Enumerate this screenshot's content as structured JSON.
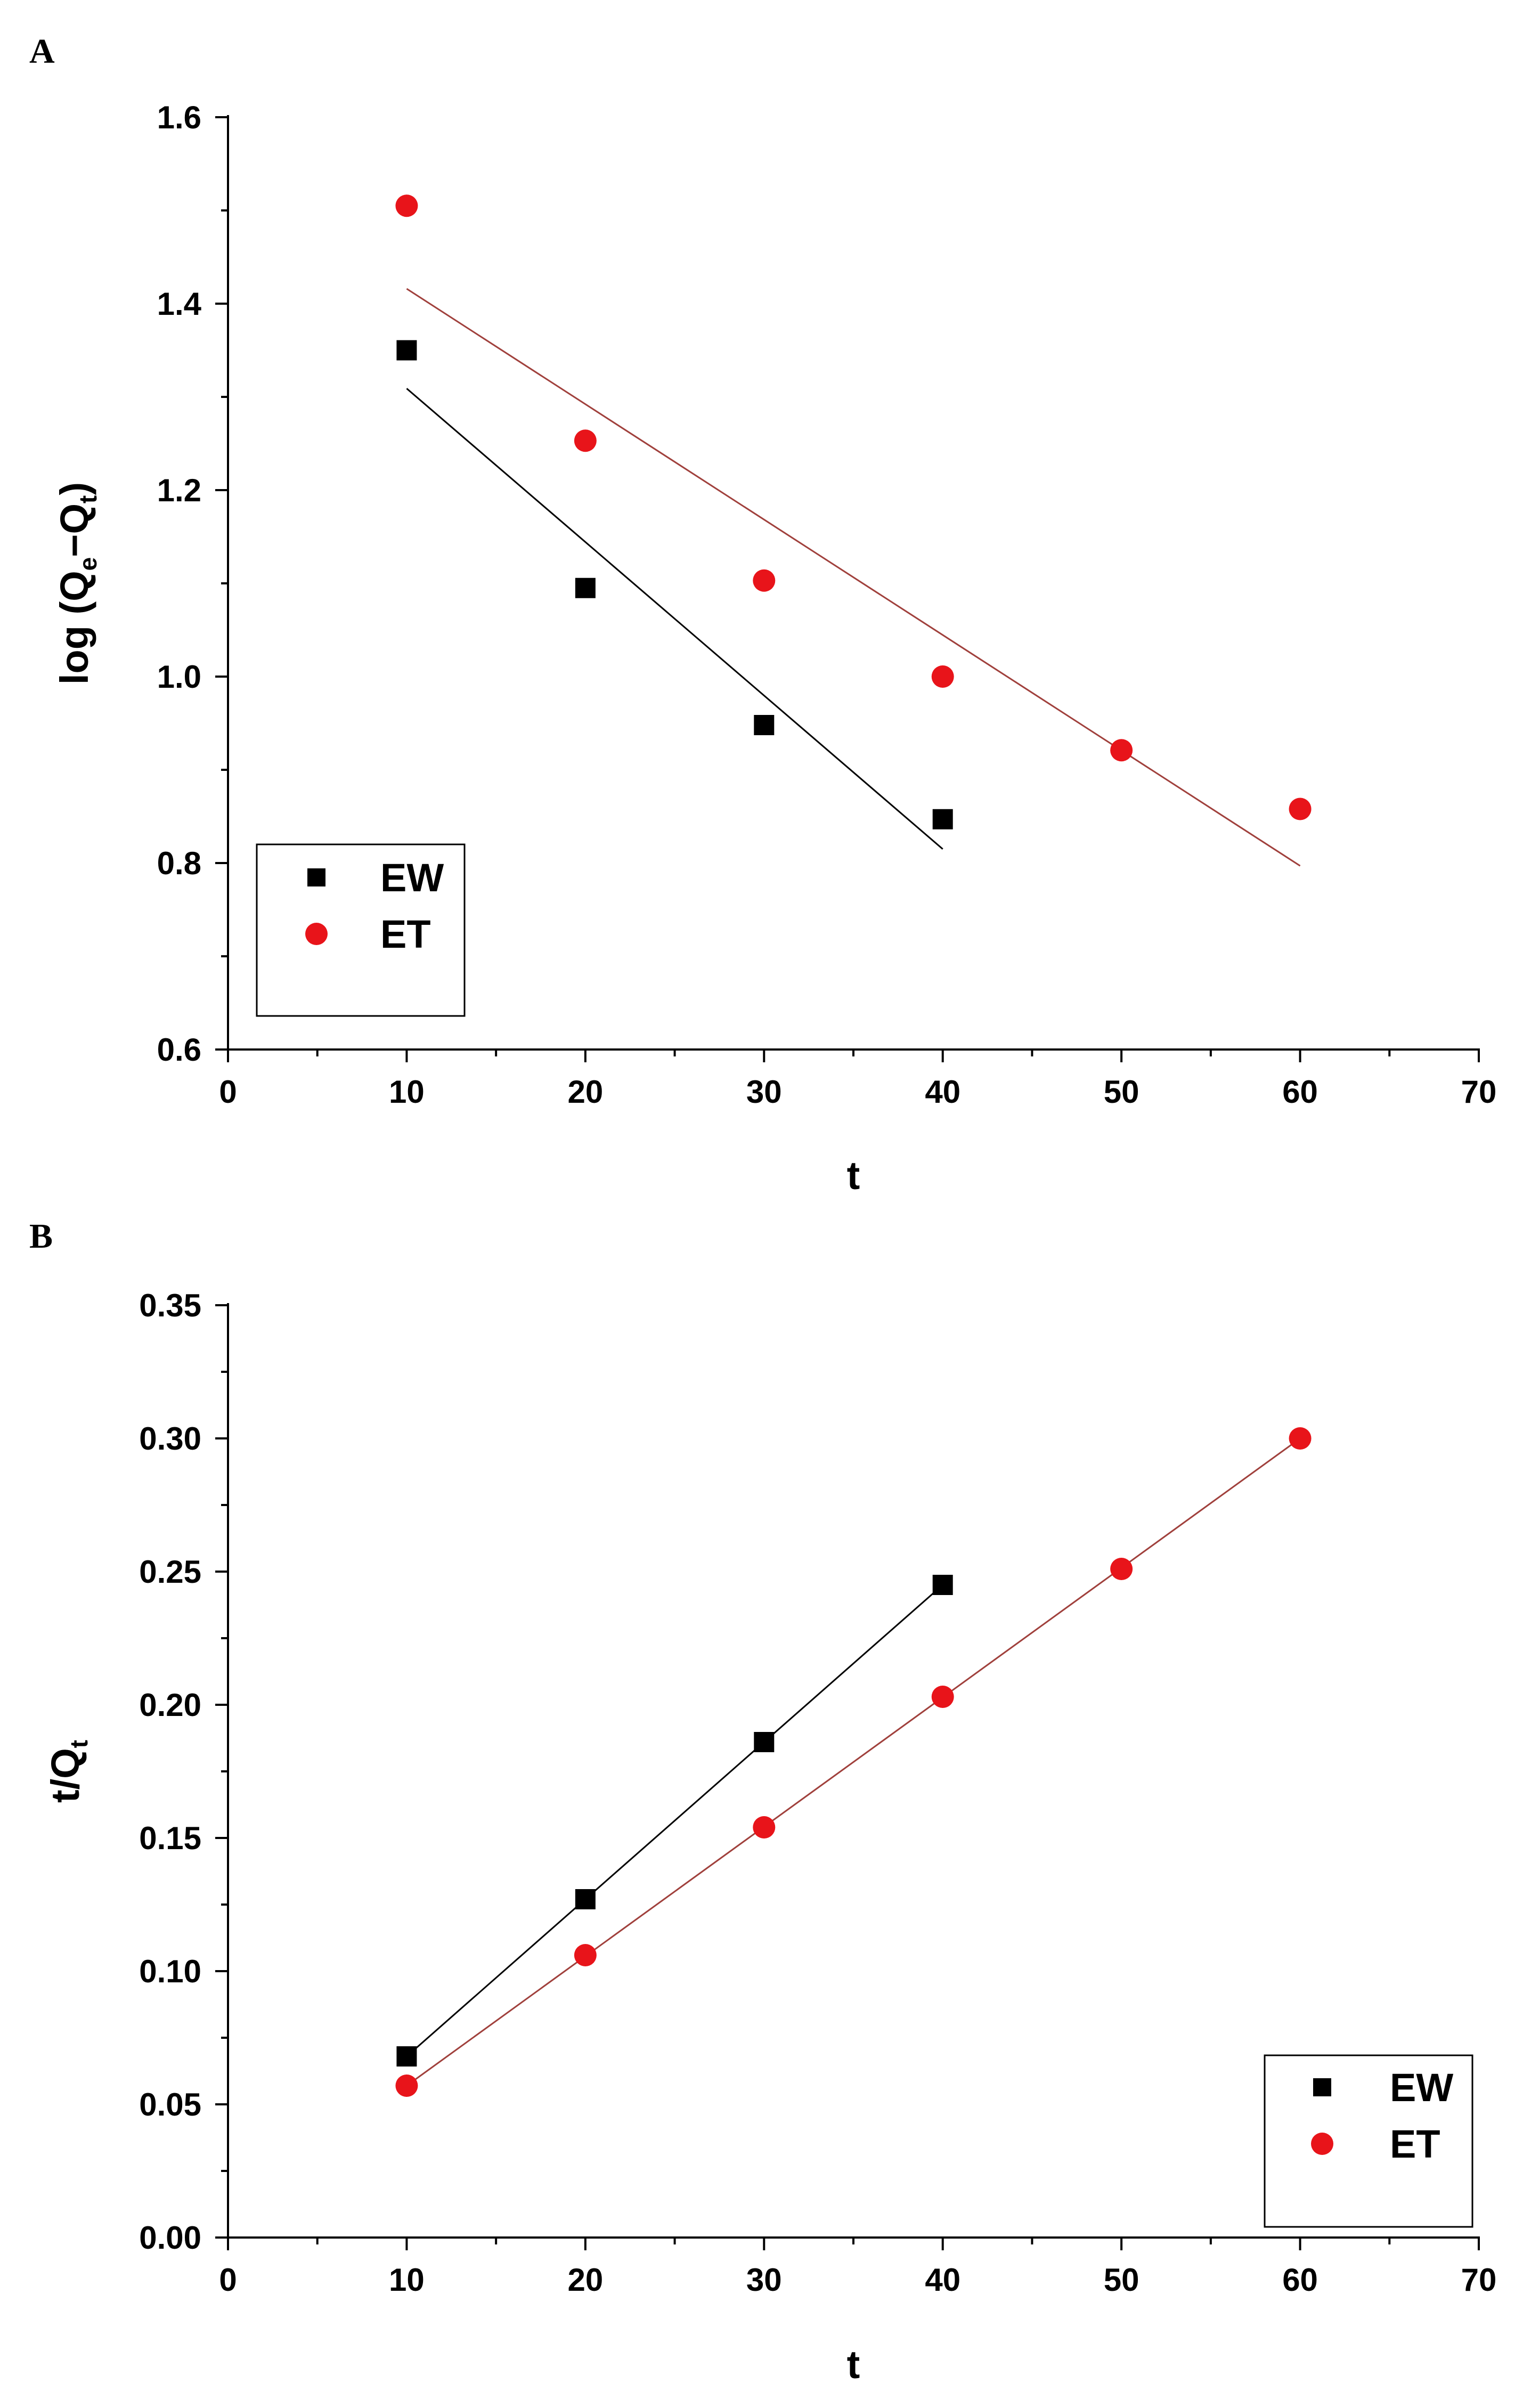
{
  "chart_data": [
    {
      "panel_label": "A",
      "type": "scatter",
      "xlabel": "t",
      "ylabel": {
        "base": "log (Q",
        "sub1": "e",
        "mid": "−Q",
        "sub2": "t",
        "end": ")"
      },
      "xlim": [
        0,
        70
      ],
      "ylim": [
        0.6,
        1.6
      ],
      "x_ticks": [
        "0",
        "10",
        "20",
        "30",
        "40",
        "50",
        "60",
        "70"
      ],
      "y_ticks": [
        "0.6",
        "0.8",
        "1.0",
        "1.2",
        "1.4",
        "1.6"
      ],
      "x_tick_values": [
        0,
        10,
        20,
        30,
        40,
        50,
        60,
        70
      ],
      "y_tick_values": [
        0.6,
        0.8,
        1.0,
        1.2,
        1.4,
        1.6
      ],
      "x_minor_step": 5,
      "y_minor_step": 0.1,
      "legend_position": "bottom-left",
      "series": [
        {
          "name": "EW",
          "marker": "square",
          "color": "#000000",
          "line_color": "#000000",
          "x": [
            10,
            20,
            30,
            40
          ],
          "y": [
            1.35,
            1.095,
            0.948,
            0.847
          ],
          "fit": {
            "x": [
              10,
              40
            ],
            "y": [
              1.309,
              0.815
            ]
          }
        },
        {
          "name": "ET",
          "marker": "circle",
          "color": "#e8141a",
          "line_color": "#a0403c",
          "x": [
            10,
            20,
            30,
            40,
            50,
            60
          ],
          "y": [
            1.505,
            1.253,
            1.103,
            1.0,
            0.921,
            0.858
          ],
          "fit": {
            "x": [
              10,
              60
            ],
            "y": [
              1.416,
              0.797
            ]
          }
        }
      ]
    },
    {
      "panel_label": "B",
      "type": "scatter",
      "xlabel": "t",
      "ylabel": {
        "base": "t/Q",
        "sub1": "t"
      },
      "xlim": [
        0,
        70
      ],
      "ylim": [
        0,
        0.35
      ],
      "x_ticks": [
        "0",
        "10",
        "20",
        "30",
        "40",
        "50",
        "60",
        "70"
      ],
      "y_ticks": [
        "0.00",
        "0.05",
        "0.10",
        "0.15",
        "0.20",
        "0.25",
        "0.30",
        "0.35"
      ],
      "x_tick_values": [
        0,
        10,
        20,
        30,
        40,
        50,
        60,
        70
      ],
      "y_tick_values": [
        0,
        0.05,
        0.1,
        0.15,
        0.2,
        0.25,
        0.3,
        0.35
      ],
      "x_minor_step": 5,
      "y_minor_step": 0.025,
      "legend_position": "bottom-right",
      "series": [
        {
          "name": "EW",
          "marker": "square",
          "color": "#000000",
          "line_color": "#000000",
          "x": [
            10,
            20,
            30,
            40
          ],
          "y": [
            0.068,
            0.127,
            0.186,
            0.245
          ],
          "fit": {
            "x": [
              10,
              40
            ],
            "y": [
              0.068,
              0.245
            ]
          }
        },
        {
          "name": "ET",
          "marker": "circle",
          "color": "#e8141a",
          "line_color": "#a0403c",
          "x": [
            10,
            20,
            30,
            40,
            50,
            60
          ],
          "y": [
            0.057,
            0.106,
            0.154,
            0.203,
            0.251,
            0.3
          ],
          "fit": {
            "x": [
              10,
              60
            ],
            "y": [
              0.057,
              0.3
            ]
          }
        }
      ]
    }
  ]
}
